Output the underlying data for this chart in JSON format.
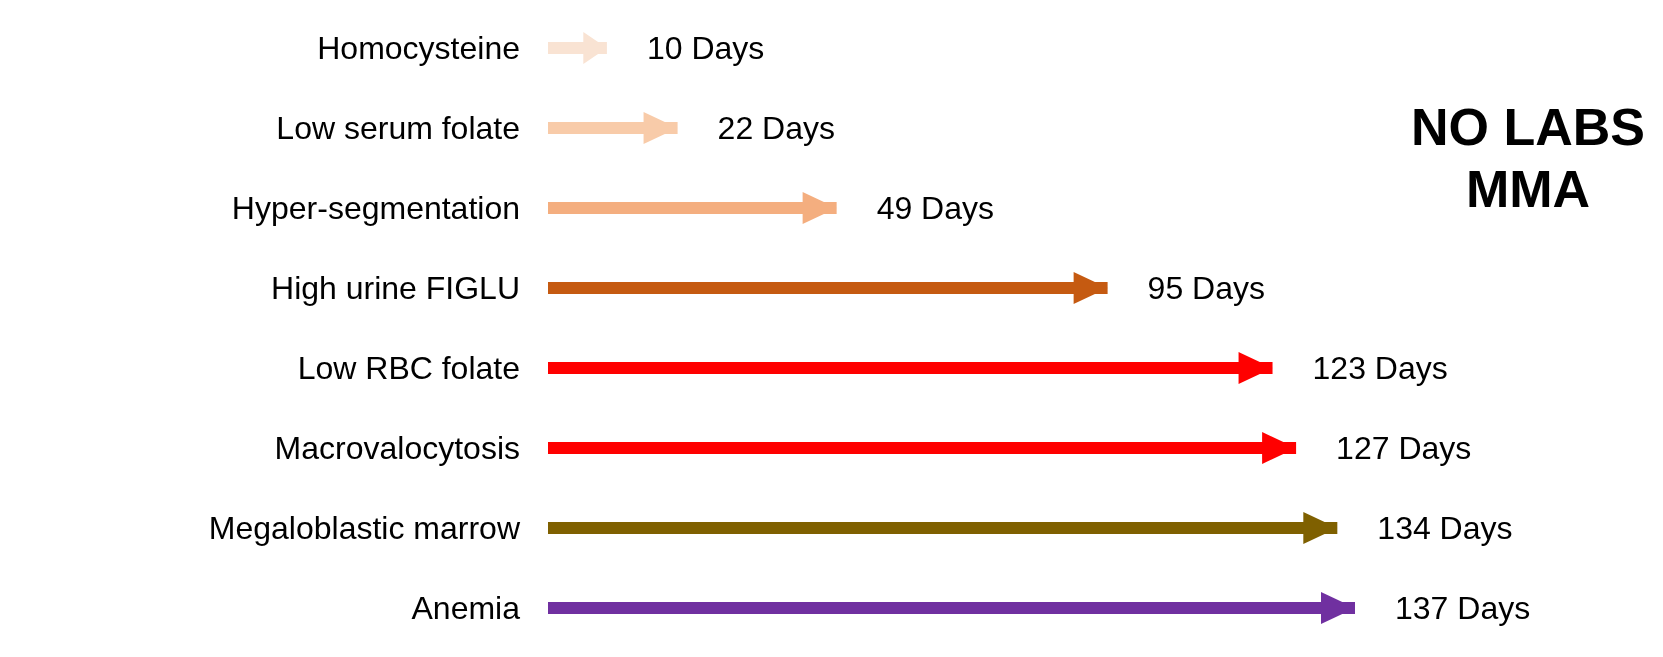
{
  "chart_data": {
    "type": "bar",
    "orientation": "horizontal",
    "categories": [
      "Homocysteine",
      "Low serum folate",
      "Hyper-segmentation",
      "High urine FIGLU",
      "Low RBC folate",
      "Macrovalocytosis",
      "Megaloblastic marrow",
      "Anemia"
    ],
    "values": [
      10,
      22,
      49,
      95,
      123,
      127,
      134,
      137
    ],
    "colors": [
      "#f9e3d3",
      "#f8cba9",
      "#f4ae7f",
      "#c55a11",
      "#ff0000",
      "#ff0000",
      "#7f6000",
      "#7030a0"
    ],
    "value_labels": [
      "10 Days",
      "22 Days",
      "49 Days",
      "95 Days",
      "123 Days",
      "127 Days",
      "134 Days",
      "137 Days"
    ],
    "tick_labels": "y",
    "annotations": [
      "NO LABS",
      "MMA"
    ]
  }
}
